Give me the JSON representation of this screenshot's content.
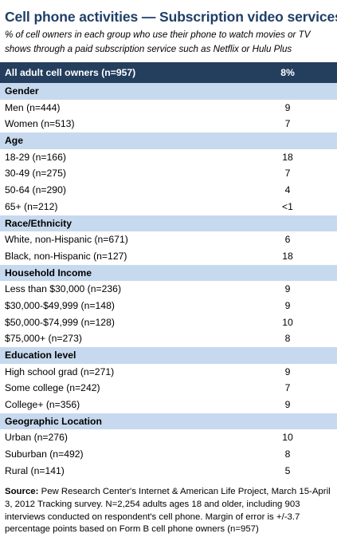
{
  "title": "Cell phone activities — Subscription video services",
  "subtitle": "% of cell owners in each group who use their phone to watch movies or TV shows through a paid subscription service such as Netflix or Hulu Plus",
  "chart_data": {
    "type": "table",
    "total": {
      "label": "All adult cell owners (n=957)",
      "value": "8%"
    },
    "sections": [
      {
        "name": "Gender",
        "rows": [
          {
            "label": "Men (n=444)",
            "value": "9"
          },
          {
            "label": "Women (n=513)",
            "value": "7"
          }
        ]
      },
      {
        "name": "Age",
        "rows": [
          {
            "label": "18-29 (n=166)",
            "value": "18"
          },
          {
            "label": "30-49 (n=275)",
            "value": "7"
          },
          {
            "label": "50-64 (n=290)",
            "value": "4"
          },
          {
            "label": "65+ (n=212)",
            "value": "<1"
          }
        ]
      },
      {
        "name": "Race/Ethnicity",
        "rows": [
          {
            "label": "White, non-Hispanic (n=671)",
            "value": "6"
          },
          {
            "label": "Black, non-Hispanic (n=127)",
            "value": "18"
          }
        ]
      },
      {
        "name": "Household Income",
        "rows": [
          {
            "label": "Less than $30,000 (n=236)",
            "value": "9"
          },
          {
            "label": "$30,000-$49,999 (n=148)",
            "value": "9"
          },
          {
            "label": "$50,000-$74,999 (n=128)",
            "value": "10"
          },
          {
            "label": "$75,000+ (n=273)",
            "value": "8"
          }
        ]
      },
      {
        "name": "Education level",
        "rows": [
          {
            "label": "High school grad (n=271)",
            "value": "9"
          },
          {
            "label": "Some college (n=242)",
            "value": "7"
          },
          {
            "label": "College+ (n=356)",
            "value": "9"
          }
        ]
      },
      {
        "name": "Geographic Location",
        "rows": [
          {
            "label": "Urban (n=276)",
            "value": "10"
          },
          {
            "label": "Suburban (n=492)",
            "value": "8"
          },
          {
            "label": "Rural (n=141)",
            "value": "5"
          }
        ]
      }
    ]
  },
  "source": {
    "label": "Source:",
    "text": "Pew Research Center's Internet & American Life Project, March 15-April 3, 2012 Tracking survey. N=2,254 adults ages 18 and older, including 903 interviews conducted on respondent's cell phone. Margin of error is +/-3.7 percentage points based on Form B cell phone owners (n=957)"
  },
  "colors": {
    "title": "#1f3f67",
    "total_band": "#243f5e",
    "section_band": "#c7d9ee"
  }
}
